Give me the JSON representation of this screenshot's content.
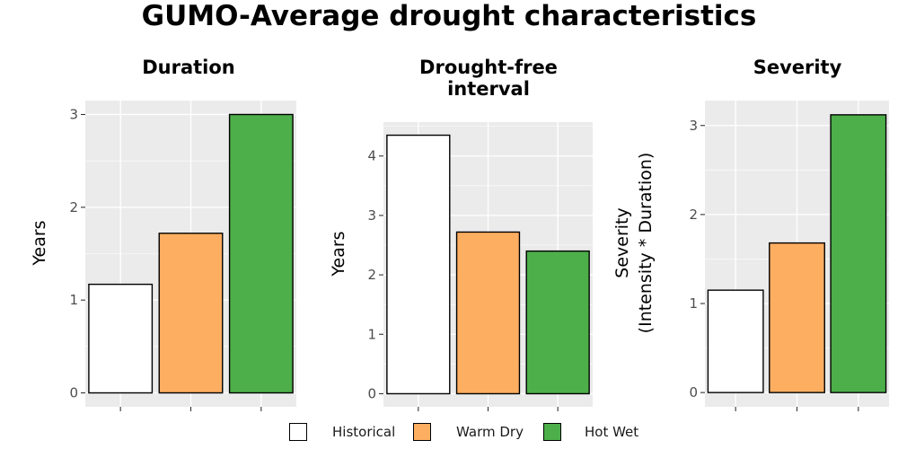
{
  "title": "GUMO-Average drought characteristics",
  "colors": {
    "panel_bg": "#ebebeb",
    "grid": "#ffffff",
    "bar_outline": "#000000"
  },
  "legend": {
    "placement": "bottom",
    "items": [
      {
        "label": "Historical",
        "color": "#ffffff"
      },
      {
        "label": "Warm Dry",
        "color": "#fdae61"
      },
      {
        "label": "Hot Wet",
        "color": "#4daf4a"
      }
    ]
  },
  "chart_data": [
    {
      "type": "bar",
      "title": "Duration",
      "title_lines": [
        "Duration"
      ],
      "ylabel_lines": [
        "Years"
      ],
      "categories": [
        "Historical",
        "Warm Dry",
        "Hot Wet"
      ],
      "values": [
        1.17,
        1.72,
        3.0
      ],
      "colors": [
        "#ffffff",
        "#fdae61",
        "#4daf4a"
      ],
      "yticks": [
        0,
        1,
        2,
        3
      ],
      "ylim": [
        -0.15,
        3.15
      ],
      "grid": true
    },
    {
      "type": "bar",
      "title": "Drought-free interval",
      "title_lines": [
        "Drought-free",
        "interval"
      ],
      "ylabel_lines": [
        "Years"
      ],
      "categories": [
        "Historical",
        "Warm Dry",
        "Hot Wet"
      ],
      "values": [
        4.35,
        2.72,
        2.4
      ],
      "colors": [
        "#ffffff",
        "#fdae61",
        "#4daf4a"
      ],
      "yticks": [
        0,
        1,
        2,
        3,
        4
      ],
      "ylim": [
        -0.22,
        4.57
      ],
      "grid": true
    },
    {
      "type": "bar",
      "title": "Severity",
      "title_lines": [
        "Severity"
      ],
      "ylabel_lines": [
        "Severity",
        "(Intensity * Duration)"
      ],
      "categories": [
        "Historical",
        "Warm Dry",
        "Hot Wet"
      ],
      "values": [
        1.15,
        1.68,
        3.12
      ],
      "colors": [
        "#ffffff",
        "#fdae61",
        "#4daf4a"
      ],
      "yticks": [
        0,
        1,
        2,
        3
      ],
      "ylim": [
        -0.16,
        3.28
      ],
      "grid": true
    }
  ]
}
